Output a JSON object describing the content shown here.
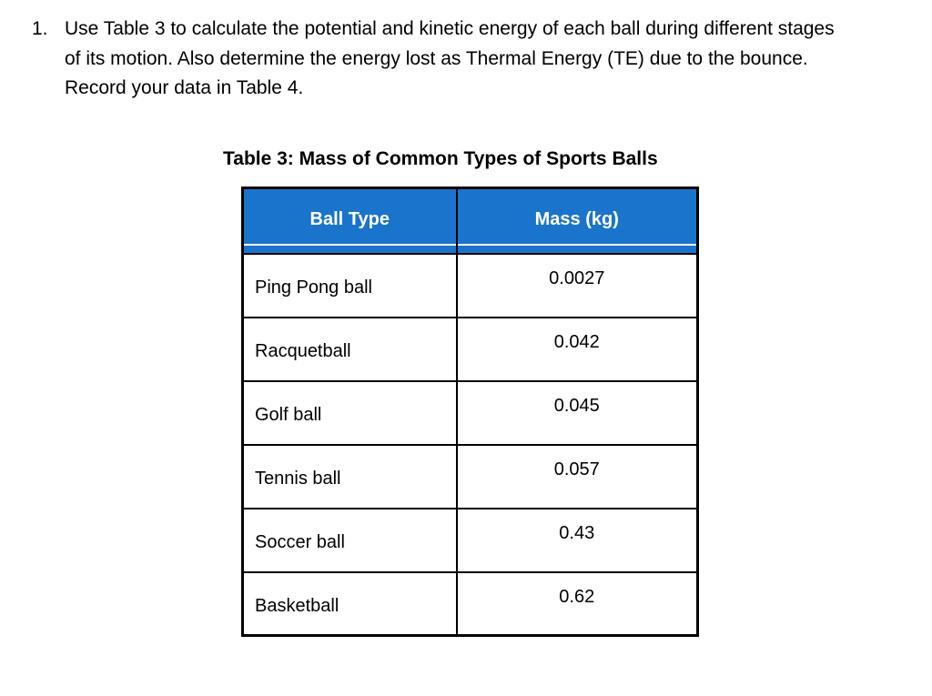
{
  "question": {
    "number": "1.",
    "lines": [
      "Use Table 3 to calculate the potential and kinetic energy of each ball during different stages",
      "of its motion. Also determine the energy lost as Thermal Energy (TE) due to the bounce.",
      "Record your data in Table 4."
    ]
  },
  "table": {
    "title": "Table 3: Mass of Common Types of Sports Balls",
    "columns": [
      "Ball Type",
      "Mass (kg)"
    ],
    "rows": [
      {
        "type": "Ping Pong ball",
        "mass": "0.0027"
      },
      {
        "type": "Racquetball",
        "mass": "0.042"
      },
      {
        "type": "Golf ball",
        "mass": "0.045"
      },
      {
        "type": "Tennis ball",
        "mass": "0.057"
      },
      {
        "type": "Soccer ball",
        "mass": "0.43"
      },
      {
        "type": "Basketball",
        "mass": "0.62"
      }
    ],
    "colors": {
      "header_bg": "#1b74cc",
      "header_text": "#ffffff",
      "border": "#000000",
      "body_text": "#000000",
      "page_bg": "#ffffff"
    }
  }
}
